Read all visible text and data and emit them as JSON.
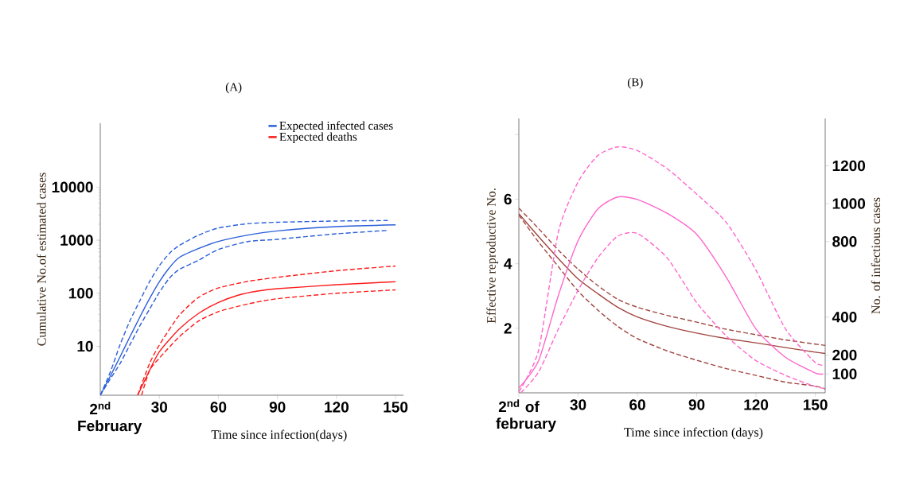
{
  "chart_data": [
    {
      "type": "line",
      "title": "(A)",
      "xlabel": "Time since infection(days)",
      "ylabel": "Cumulative No.of estimated cases",
      "log": "y",
      "legend": "top right",
      "xlim": [
        0,
        154
      ],
      "xticks": [
        {
          "value": 0,
          "label": "2$^{nd}$ February"
        },
        30,
        60,
        90,
        120,
        150
      ],
      "ylim": [
        1.2,
        160000
      ],
      "yticks": [
        10,
        100,
        1000,
        10000
      ],
      "series": [
        {
          "name": "Expected infected cases",
          "color": "#2b5fd9",
          "line_style": "solid",
          "x": [
            0,
            5,
            10,
            15,
            20,
            25,
            30,
            35,
            40,
            50,
            60,
            75,
            90,
            120,
            150
          ],
          "values": [
            1.2,
            2.7,
            6.3,
            15,
            35,
            79,
            165,
            300,
            470,
            700,
            950,
            1250,
            1500,
            1800,
            1950
          ]
        },
        {
          "color": "#2b5fd9",
          "line_style": "dashed",
          "x": [
            0,
            5,
            10,
            15,
            20,
            25,
            30,
            35,
            40,
            50,
            60,
            75,
            90,
            120,
            146
          ],
          "values": [
            1.2,
            3.2,
            10.6,
            30,
            71,
            165,
            330,
            560,
            790,
            1250,
            1700,
            2050,
            2180,
            2300,
            2350
          ]
        },
        {
          "color": "#2b5fd9",
          "line_style": "dashed",
          "x": [
            0,
            5,
            10,
            15,
            20,
            25,
            30,
            35,
            40,
            50,
            60,
            75,
            90,
            120,
            146
          ],
          "values": [
            1.2,
            2.4,
            4.7,
            10.6,
            24,
            50,
            104,
            190,
            280,
            420,
            670,
            945,
            1040,
            1320,
            1530
          ]
        },
        {
          "name": "Expected deaths",
          "color": "#ff1a1a",
          "line_style": "solid",
          "x": [
            19,
            25,
            30,
            40,
            50,
            60,
            70,
            80,
            90,
            120,
            150
          ],
          "values": [
            1.2,
            3.5,
            7.9,
            21,
            42,
            67,
            92,
            110,
            122,
            145,
            165
          ]
        },
        {
          "color": "#ff1a1a",
          "line_style": "dashed",
          "x": [
            19,
            25,
            30,
            40,
            50,
            60,
            75,
            90,
            120,
            150
          ],
          "values": [
            1.2,
            4.7,
            10.6,
            38,
            84,
            126,
            168,
            200,
            266,
            327
          ]
        },
        {
          "color": "#ff1a1a",
          "line_style": "dashed",
          "x": [
            21,
            25,
            30,
            40,
            50,
            60,
            75,
            90,
            120,
            150
          ],
          "values": [
            1.2,
            3.5,
            6,
            15,
            30,
            45,
            63,
            79,
            100,
            116
          ]
        }
      ]
    },
    {
      "type": "line",
      "title": "(B)",
      "xlabel": "Time since infection (days)",
      "ylabel": "Effective reproductive No.",
      "y2label": "No. of infectious cases",
      "xlim": [
        0,
        155
      ],
      "xticks": [
        {
          "value": 0,
          "label": "2$^{nd}$ of february"
        },
        30,
        60,
        90,
        120,
        150
      ],
      "ylim": [
        0,
        8.5
      ],
      "yticks": [
        2,
        4,
        6,
        {
          "value": 8,
          "label": null
        }
      ],
      "y2lim": [
        0,
        1450
      ],
      "y2ticks": [
        100,
        200,
        400,
        800,
        1000,
        1200
      ],
      "series": [
        {
          "color": "#ff66cc",
          "line_style": "solid",
          "axis": "y2",
          "x": [
            0,
            10,
            20,
            30,
            40,
            50,
            60,
            75,
            90,
            105,
            120,
            135,
            150,
            154
          ],
          "values": [
            25,
            170,
            515,
            805,
            972,
            1035,
            1022,
            949,
            837,
            610,
            337,
            187,
            105,
            100
          ]
        },
        {
          "color": "#ff66cc",
          "line_style": "dashed",
          "axis": "y2",
          "x": [
            0,
            10,
            20,
            30,
            40,
            50,
            60,
            75,
            90,
            105,
            120,
            135,
            150,
            155
          ],
          "values": [
            5,
            226,
            850,
            1115,
            1255,
            1300,
            1280,
            1185,
            1050,
            900,
            648,
            337,
            160,
            147
          ]
        },
        {
          "color": "#ff66cc",
          "line_style": "dashed",
          "axis": "y2",
          "x": [
            1,
            10,
            20,
            30,
            40,
            50,
            60,
            75,
            90,
            105,
            120,
            135,
            150,
            155
          ],
          "values": [
            0,
            110,
            337,
            543,
            714,
            828,
            842,
            714,
            476,
            300,
            170,
            92,
            33,
            23
          ]
        },
        {
          "color": "#a0453f",
          "line_style": "solid",
          "axis": "y",
          "x": [
            0,
            10,
            20,
            30,
            40,
            50,
            60,
            75,
            90,
            105,
            120,
            135,
            150,
            155
          ],
          "values": [
            5.55,
            4.84,
            4.16,
            3.53,
            3.07,
            2.65,
            2.35,
            2.06,
            1.85,
            1.68,
            1.55,
            1.4,
            1.26,
            1.22
          ]
        },
        {
          "color": "#a0453f",
          "line_style": "dashed",
          "axis": "y",
          "x": [
            0,
            10,
            20,
            30,
            40,
            50,
            60,
            75,
            90,
            105,
            120,
            135,
            150,
            155
          ],
          "values": [
            5.72,
            5.09,
            4.42,
            3.83,
            3.32,
            2.9,
            2.65,
            2.4,
            2.19,
            1.97,
            1.8,
            1.64,
            1.51,
            1.47
          ]
        },
        {
          "color": "#a0453f",
          "line_style": "dashed",
          "axis": "y",
          "x": [
            0,
            10,
            20,
            30,
            40,
            50,
            60,
            75,
            90,
            105,
            120,
            135,
            150,
            155
          ],
          "values": [
            5.51,
            4.67,
            3.91,
            3.15,
            2.56,
            2.06,
            1.68,
            1.3,
            1.01,
            0.75,
            0.54,
            0.33,
            0.21,
            0.12
          ]
        }
      ]
    }
  ]
}
